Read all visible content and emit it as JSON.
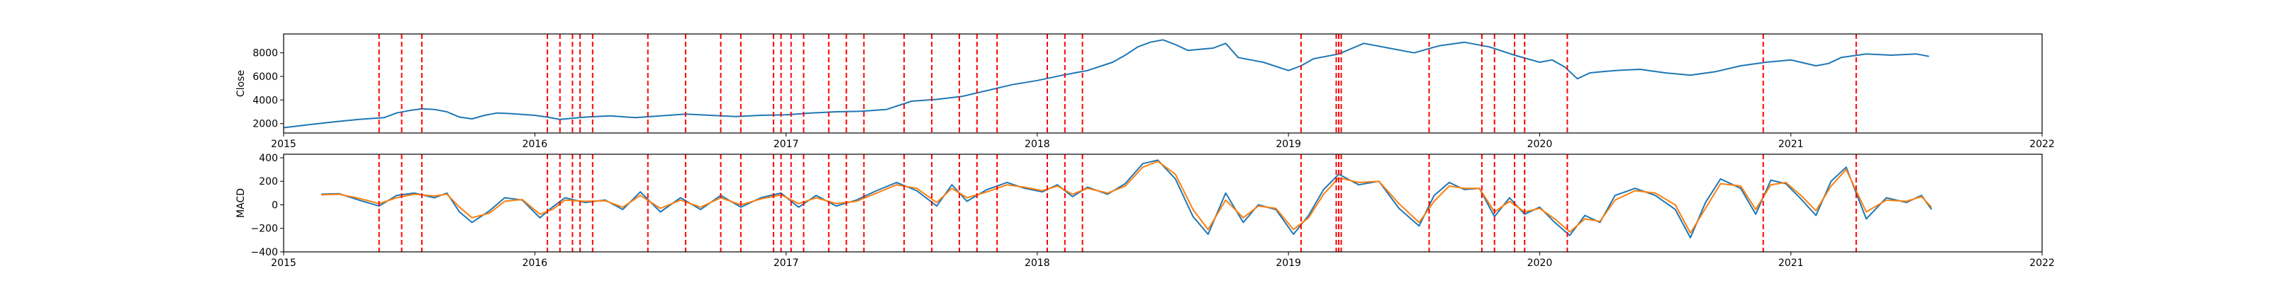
{
  "chart_data": [
    {
      "type": "line",
      "ylabel": "Close",
      "xlim": [
        2015.0,
        2022.0
      ],
      "ylim": [
        1200,
        9600
      ],
      "x_tick_labels": [
        "2015",
        "2016",
        "2017",
        "2018",
        "2019",
        "2020",
        "2021",
        "2022"
      ],
      "y_tick_values": [
        2000,
        4000,
        6000,
        8000
      ],
      "y_tick_labels": [
        "2000",
        "4000",
        "6000",
        "8000"
      ],
      "grid": false,
      "line_color": "#1f77b4",
      "series": [
        {
          "x": [
            2015.0,
            2015.1,
            2015.2,
            2015.3,
            2015.4,
            2015.45,
            2015.5,
            2015.55,
            2015.6,
            2015.65,
            2015.7,
            2015.75,
            2015.8,
            2015.85,
            2015.9,
            2016.0,
            2016.05,
            2016.1,
            2016.2,
            2016.3,
            2016.4,
            2016.5,
            2016.6,
            2016.7,
            2016.8,
            2016.9,
            2017.0,
            2017.1,
            2017.2,
            2017.3,
            2017.4,
            2017.5,
            2017.6,
            2017.7,
            2017.8,
            2017.9,
            2018.0,
            2018.1,
            2018.2,
            2018.3,
            2018.35,
            2018.4,
            2018.45,
            2018.5,
            2018.55,
            2018.6,
            2018.7,
            2018.75,
            2018.8,
            2018.9,
            2019.0,
            2019.05,
            2019.1,
            2019.2,
            2019.3,
            2019.4,
            2019.5,
            2019.6,
            2019.7,
            2019.8,
            2019.9,
            2020.0,
            2020.05,
            2020.1,
            2020.15,
            2020.2,
            2020.25,
            2020.3,
            2020.4,
            2020.5,
            2020.6,
            2020.7,
            2020.8,
            2020.9,
            2021.0,
            2021.1,
            2021.15,
            2021.2,
            2021.3,
            2021.4,
            2021.5,
            2021.55
          ],
          "values": [
            1650,
            1900,
            2150,
            2350,
            2500,
            2900,
            3100,
            3250,
            3200,
            3000,
            2550,
            2400,
            2700,
            2900,
            2850,
            2700,
            2550,
            2350,
            2550,
            2650,
            2500,
            2650,
            2800,
            2700,
            2600,
            2700,
            2750,
            2900,
            3000,
            3050,
            3200,
            3900,
            4050,
            4300,
            4800,
            5300,
            5650,
            6100,
            6500,
            7200,
            7800,
            8500,
            8900,
            9100,
            8700,
            8200,
            8400,
            8800,
            7600,
            7200,
            6500,
            6900,
            7500,
            7900,
            8800,
            8400,
            8000,
            8600,
            8900,
            8500,
            7800,
            7200,
            7400,
            6800,
            5800,
            6300,
            6400,
            6500,
            6600,
            6300,
            6100,
            6400,
            6900,
            7200,
            7400,
            6900,
            7100,
            7600,
            7900,
            7800,
            7900,
            7700
          ]
        }
      ],
      "event_line_color": "#ff0000",
      "event_dates": [
        2015.38,
        2015.47,
        2015.55,
        2016.05,
        2016.1,
        2016.15,
        2016.18,
        2016.23,
        2016.45,
        2016.6,
        2016.74,
        2016.82,
        2016.95,
        2016.98,
        2017.02,
        2017.07,
        2017.17,
        2017.24,
        2017.31,
        2017.47,
        2017.58,
        2017.69,
        2017.76,
        2017.84,
        2018.04,
        2018.11,
        2018.18,
        2019.05,
        2019.19,
        2019.2,
        2019.21,
        2019.56,
        2019.77,
        2019.82,
        2019.9,
        2019.94,
        2020.11,
        2020.89,
        2021.26
      ]
    },
    {
      "type": "line",
      "ylabel": "MACD",
      "xlim": [
        2015.0,
        2022.0
      ],
      "ylim": [
        -400,
        430
      ],
      "x_tick_labels": [
        "2015",
        "2016",
        "2017",
        "2018",
        "2019",
        "2020",
        "2021",
        "2022"
      ],
      "y_tick_values": [
        -400,
        -200,
        0,
        200,
        400
      ],
      "y_tick_labels": [
        "−400",
        "−200",
        "0",
        "200",
        "400"
      ],
      "grid": false,
      "series": [
        {
          "color": "#1f77b4",
          "x": [
            2015.15,
            2015.22,
            2015.3,
            2015.38,
            2015.45,
            2015.52,
            2015.6,
            2015.65,
            2015.7,
            2015.75,
            2015.82,
            2015.88,
            2015.95,
            2016.02,
            2016.07,
            2016.12,
            2016.2,
            2016.28,
            2016.35,
            2016.42,
            2016.5,
            2016.58,
            2016.66,
            2016.74,
            2016.82,
            2016.9,
            2016.98,
            2017.05,
            2017.12,
            2017.2,
            2017.28,
            2017.36,
            2017.44,
            2017.52,
            2017.6,
            2017.66,
            2017.72,
            2017.8,
            2017.88,
            2017.95,
            2018.02,
            2018.08,
            2018.14,
            2018.2,
            2018.28,
            2018.35,
            2018.42,
            2018.48,
            2018.55,
            2018.62,
            2018.68,
            2018.75,
            2018.82,
            2018.88,
            2018.95,
            2019.02,
            2019.08,
            2019.14,
            2019.2,
            2019.28,
            2019.36,
            2019.44,
            2019.52,
            2019.58,
            2019.64,
            2019.7,
            2019.76,
            2019.82,
            2019.88,
            2019.94,
            2020.0,
            2020.06,
            2020.12,
            2020.18,
            2020.24,
            2020.3,
            2020.38,
            2020.46,
            2020.54,
            2020.6,
            2020.66,
            2020.72,
            2020.8,
            2020.86,
            2020.92,
            2020.98,
            2021.04,
            2021.1,
            2021.16,
            2021.22,
            2021.3,
            2021.38,
            2021.46,
            2021.52,
            2021.56
          ],
          "values": [
            90,
            95,
            40,
            -10,
            80,
            100,
            60,
            100,
            -60,
            -150,
            -50,
            60,
            40,
            -110,
            -20,
            60,
            20,
            40,
            -40,
            110,
            -60,
            60,
            -40,
            80,
            -20,
            60,
            100,
            -20,
            80,
            -10,
            40,
            120,
            190,
            120,
            -10,
            170,
            30,
            130,
            190,
            140,
            110,
            170,
            70,
            150,
            90,
            180,
            350,
            380,
            220,
            -100,
            -250,
            100,
            -150,
            0,
            -40,
            -250,
            -90,
            130,
            260,
            170,
            200,
            -30,
            -180,
            80,
            190,
            130,
            140,
            -100,
            60,
            -80,
            -20,
            -150,
            -260,
            -90,
            -150,
            80,
            140,
            80,
            -40,
            -280,
            20,
            220,
            140,
            -80,
            210,
            180,
            50,
            -90,
            200,
            320,
            -120,
            60,
            20,
            80,
            -40
          ]
        },
        {
          "color": "#ff7f0e",
          "x": [
            2015.15,
            2015.22,
            2015.3,
            2015.38,
            2015.45,
            2015.52,
            2015.6,
            2015.65,
            2015.7,
            2015.75,
            2015.82,
            2015.88,
            2015.95,
            2016.02,
            2016.07,
            2016.12,
            2016.2,
            2016.28,
            2016.35,
            2016.42,
            2016.5,
            2016.58,
            2016.66,
            2016.74,
            2016.82,
            2016.9,
            2016.98,
            2017.05,
            2017.12,
            2017.2,
            2017.28,
            2017.36,
            2017.44,
            2017.52,
            2017.6,
            2017.66,
            2017.72,
            2017.8,
            2017.88,
            2017.95,
            2018.02,
            2018.08,
            2018.14,
            2018.2,
            2018.28,
            2018.35,
            2018.42,
            2018.48,
            2018.55,
            2018.62,
            2018.68,
            2018.75,
            2018.82,
            2018.88,
            2018.95,
            2019.02,
            2019.08,
            2019.14,
            2019.2,
            2019.28,
            2019.36,
            2019.44,
            2019.52,
            2019.58,
            2019.64,
            2019.7,
            2019.76,
            2019.82,
            2019.88,
            2019.94,
            2020.0,
            2020.06,
            2020.12,
            2020.18,
            2020.24,
            2020.3,
            2020.38,
            2020.46,
            2020.54,
            2020.6,
            2020.66,
            2020.72,
            2020.8,
            2020.86,
            2020.92,
            2020.98,
            2021.04,
            2021.1,
            2021.16,
            2021.22,
            2021.3,
            2021.38,
            2021.46,
            2021.52,
            2021.56
          ],
          "values": [
            85,
            90,
            55,
            10,
            60,
            90,
            75,
            90,
            -20,
            -110,
            -70,
            30,
            45,
            -80,
            -40,
            40,
            30,
            35,
            -20,
            80,
            -30,
            40,
            -20,
            60,
            0,
            50,
            85,
            10,
            60,
            10,
            30,
            100,
            170,
            140,
            20,
            140,
            60,
            110,
            170,
            150,
            120,
            160,
            90,
            140,
            100,
            160,
            320,
            370,
            260,
            -40,
            -210,
            40,
            -110,
            -10,
            -30,
            -210,
            -110,
            90,
            230,
            190,
            200,
            10,
            -150,
            30,
            160,
            140,
            140,
            -60,
            30,
            -60,
            -30,
            -120,
            -230,
            -120,
            -140,
            40,
            120,
            100,
            0,
            -240,
            -30,
            180,
            160,
            -40,
            170,
            190,
            80,
            -50,
            160,
            300,
            -60,
            40,
            30,
            70,
            -20
          ]
        }
      ],
      "event_line_color": "#ff0000",
      "event_dates": [
        2015.38,
        2015.47,
        2015.55,
        2016.05,
        2016.1,
        2016.15,
        2016.18,
        2016.23,
        2016.45,
        2016.6,
        2016.74,
        2016.82,
        2016.95,
        2016.98,
        2017.02,
        2017.07,
        2017.17,
        2017.24,
        2017.31,
        2017.47,
        2017.58,
        2017.69,
        2017.76,
        2017.84,
        2018.04,
        2018.11,
        2018.18,
        2019.05,
        2019.19,
        2019.2,
        2019.21,
        2019.56,
        2019.77,
        2019.82,
        2019.9,
        2019.94,
        2020.11,
        2020.89,
        2021.26
      ]
    }
  ]
}
